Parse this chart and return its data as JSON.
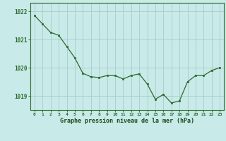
{
  "x": [
    0,
    1,
    2,
    3,
    4,
    5,
    6,
    7,
    8,
    9,
    10,
    11,
    12,
    13,
    14,
    15,
    16,
    17,
    18,
    19,
    20,
    21,
    22,
    23
  ],
  "y": [
    1021.85,
    1021.55,
    1021.25,
    1021.15,
    1020.75,
    1020.35,
    1019.8,
    1019.68,
    1019.65,
    1019.72,
    1019.72,
    1019.6,
    1019.72,
    1019.78,
    1019.42,
    1018.88,
    1019.05,
    1018.75,
    1018.82,
    1019.5,
    1019.72,
    1019.72,
    1019.9,
    1020.0
  ],
  "line_color": "#2d6a2d",
  "marker_color": "#2d6a2d",
  "bg_color": "#c8eae8",
  "grid_color": "#a8ccca",
  "axis_color": "#2d6a2d",
  "tick_label_color": "#2d6a2d",
  "xlabel": "Graphe pression niveau de la mer (hPa)",
  "xlabel_color": "#1a4a1a",
  "ylim": [
    1018.5,
    1022.3
  ],
  "yticks": [
    1019,
    1020,
    1021,
    1022
  ],
  "xticks": [
    0,
    1,
    2,
    3,
    4,
    5,
    6,
    7,
    8,
    9,
    10,
    11,
    12,
    13,
    14,
    15,
    16,
    17,
    18,
    19,
    20,
    21,
    22,
    23
  ],
  "xlim": [
    -0.5,
    23.5
  ]
}
